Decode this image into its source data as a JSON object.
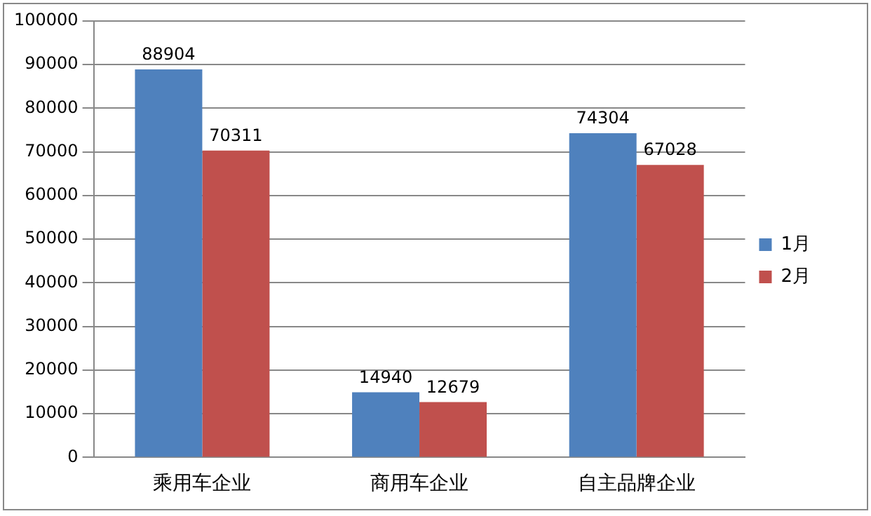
{
  "chart_data": {
    "type": "bar",
    "categories": [
      "乘用车企业",
      "商用车企业",
      "自主品牌企业"
    ],
    "series": [
      {
        "name": "1月",
        "color": "#4f81bd",
        "values": [
          88904,
          14940,
          74304
        ]
      },
      {
        "name": "2月",
        "color": "#c0504d",
        "values": [
          70311,
          12679,
          67028
        ]
      }
    ],
    "ylim": [
      0,
      100000
    ],
    "yticks": [
      0,
      10000,
      20000,
      30000,
      40000,
      50000,
      60000,
      70000,
      80000,
      90000,
      100000
    ],
    "grid": "y",
    "legend": "right",
    "data_labels": true
  }
}
